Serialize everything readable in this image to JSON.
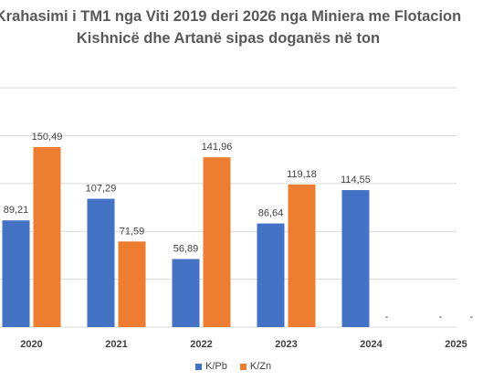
{
  "chart_data": {
    "type": "bar",
    "title_line1": "Krahasimi i TM1 nga Viti 2019 deri 2026 nga Miniera me  Flotacion",
    "title_line2": "Kishnicë dhe Artanë sipas doganës në ton",
    "categories": [
      "2020",
      "2021",
      "2022",
      "2023",
      "2024",
      "2025"
    ],
    "series": [
      {
        "name": "K/Pb",
        "color": "#4472c4",
        "values": [
          89.21,
          107.29,
          56.89,
          86.64,
          114.55,
          null
        ],
        "labels": [
          "89,21",
          "107,29",
          "56,89",
          "86,64",
          "114,55",
          "-"
        ]
      },
      {
        "name": "K/Zn",
        "color": "#ed7d31",
        "values": [
          150.49,
          71.59,
          141.96,
          119.18,
          null,
          null
        ],
        "labels": [
          "150,49",
          "71,59",
          "141,96",
          "119,18",
          "-",
          "-"
        ]
      }
    ],
    "ylim": [
      0,
      220
    ],
    "grid": true,
    "legend_position": "bottom"
  }
}
